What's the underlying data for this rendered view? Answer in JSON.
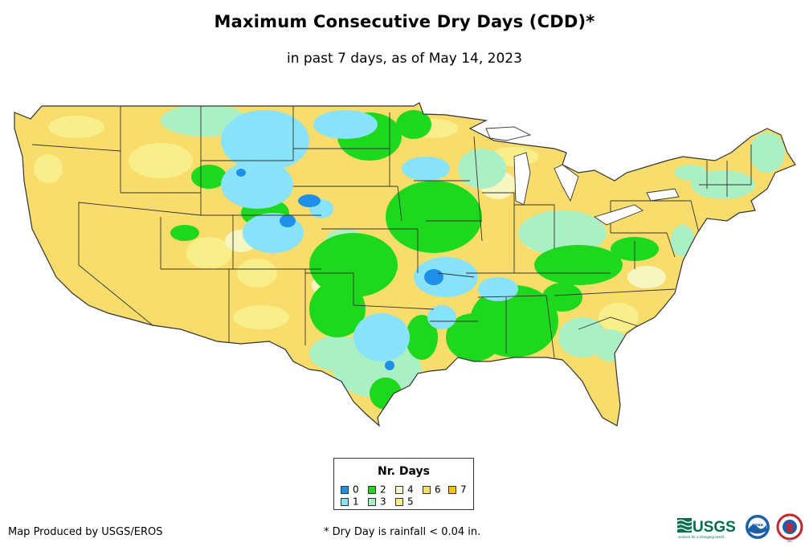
{
  "map": {
    "title": "Maximum Consecutive Dry Days (CDD)*",
    "subtitle": "in past 7 days, as of May 14, 2023",
    "region": "Contiguous United States",
    "legend": {
      "title": "Nr. Days",
      "items": [
        {
          "label": "0",
          "color": "#1e90ea"
        },
        {
          "label": "1",
          "color": "#87e2fa"
        },
        {
          "label": "2",
          "color": "#1ed81e"
        },
        {
          "label": "3",
          "color": "#aaf0c4"
        },
        {
          "label": "4",
          "color": "#f8f6c0"
        },
        {
          "label": "5",
          "color": "#f9ef8a"
        },
        {
          "label": "6",
          "color": "#f8dd6c"
        },
        {
          "label": "7",
          "color": "#f6c20b"
        }
      ]
    }
  },
  "footer": {
    "credit": "Map Produced by USGS/EROS",
    "footnote": "* Dry Day is rainfall < 0.04 in."
  },
  "logos": {
    "usgs": "USGS",
    "usgs_tagline": "science for a changing world",
    "noaa": "noaa",
    "nws": "NWS"
  },
  "colors": {
    "state_border": "#333333",
    "background": "#ffffff"
  }
}
